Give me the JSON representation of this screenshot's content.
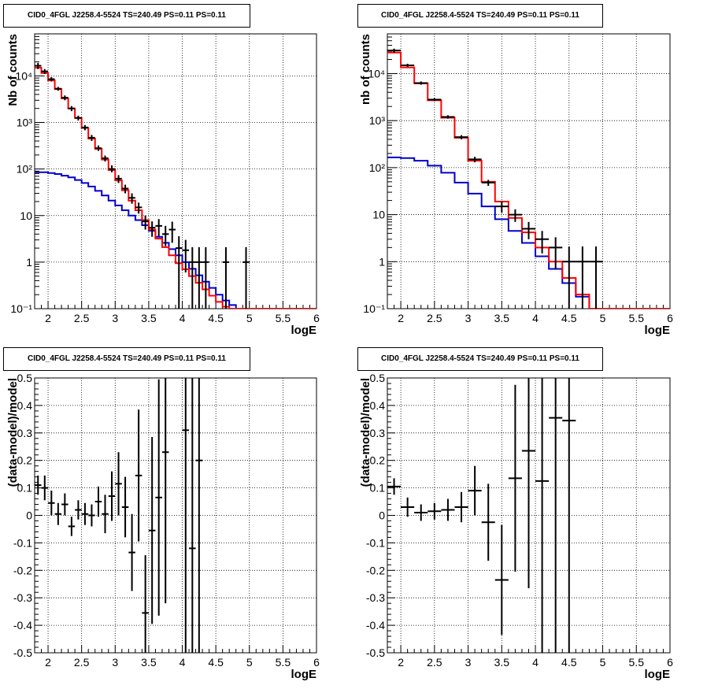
{
  "panels": [
    {
      "title": "CID0_4FGL J2258.4-5524 TS=240.49 PS=0.11 PS=0.11",
      "xlabel": "logE",
      "ylabel": "Nb of counts",
      "ytick_labels": [
        "10⁻¹",
        "1",
        "10",
        "10²",
        "10³",
        "10⁴"
      ]
    },
    {
      "title": "CID0_4FGL J2258.4-5524 TS=240.49 PS=0.11 PS=0.11",
      "xlabel": "logE",
      "ylabel": "nb of counts",
      "ytick_labels": [
        "10⁻¹",
        "1",
        "10",
        "10²",
        "10³",
        "10⁴"
      ]
    },
    {
      "title": "CID0_4FGL J2258.4-5524 TS=240.49 PS=0.11 PS=0.11",
      "xlabel": "logE",
      "ylabel": "(data-model)/model"
    },
    {
      "title": "CID0_4FGL J2258.4-5524 TS=240.49 PS=0.11 PS=0.11",
      "xlabel": "logE",
      "ylabel": "(data-model)/model"
    }
  ],
  "colors": {
    "total_model": "#ff0000",
    "component_model": "#0000cc",
    "data": "#000000",
    "grid": "#000000"
  },
  "chart_data": [
    {
      "type": "line",
      "scale": "log",
      "xlim": [
        1.8,
        6.0
      ],
      "ylim": [
        0.1,
        80000
      ],
      "grid": true,
      "xticks": [
        2,
        2.5,
        3,
        3.5,
        4,
        4.5,
        5,
        5.5,
        6
      ],
      "xtick_labels": [
        "2",
        "2.5",
        "3",
        "3.5",
        "4",
        "4.5",
        "5",
        "5.5",
        "6"
      ],
      "yticks": [
        0.1,
        1,
        10,
        100,
        1000,
        10000
      ],
      "bin_edges": [
        1.8,
        1.9,
        2.0,
        2.1,
        2.2,
        2.3,
        2.4,
        2.5,
        2.6,
        2.7,
        2.8,
        2.9,
        3.0,
        3.1,
        3.2,
        3.3,
        3.4,
        3.5,
        3.6,
        3.7,
        3.8,
        3.9,
        4.0,
        4.1,
        4.2,
        4.3,
        4.4,
        4.5,
        4.6,
        4.7,
        4.8,
        4.9,
        5.0,
        5.1,
        5.2,
        5.3,
        5.4,
        5.5,
        5.6,
        5.7,
        5.8,
        5.9,
        6.0
      ],
      "model_total": [
        15000,
        11500,
        8000,
        5200,
        3300,
        2000,
        1250,
        760,
        450,
        270,
        160,
        95,
        57,
        35,
        21,
        13,
        8,
        5,
        3.2,
        2.1,
        1.4,
        0.95,
        0.7,
        0.5,
        0.36,
        0.26,
        0.19,
        0.14,
        0.11,
        0.1,
        0.1,
        0.1,
        0.1,
        0.1,
        0.1,
        0.1,
        0.1,
        0.1,
        0.1,
        0.1,
        0.1,
        0.1
      ],
      "model_component": [
        85,
        85,
        82,
        78,
        72,
        66,
        58,
        50,
        42,
        34,
        27,
        21,
        16.5,
        13,
        10,
        8,
        6.2,
        4.7,
        3.5,
        2.6,
        1.9,
        1.4,
        1.0,
        0.72,
        0.52,
        0.38,
        0.28,
        0.2,
        0.15,
        0.12,
        0.1,
        0.1,
        0.1,
        0.1,
        0.1,
        0.1,
        0.1,
        0.1,
        0.1,
        0.1,
        0.1,
        0.1
      ],
      "data_points": [
        {
          "x": 1.85,
          "y": 16500,
          "lo": 14000,
          "hi": 19000
        },
        {
          "x": 1.95,
          "y": 12500,
          "lo": 11000,
          "hi": 14000
        },
        {
          "x": 2.05,
          "y": 8500,
          "lo": 7600,
          "hi": 9400
        },
        {
          "x": 2.15,
          "y": 5300,
          "lo": 4800,
          "hi": 5800
        },
        {
          "x": 2.25,
          "y": 3400,
          "lo": 3000,
          "hi": 3800
        },
        {
          "x": 2.35,
          "y": 2000,
          "lo": 1750,
          "hi": 2250
        },
        {
          "x": 2.45,
          "y": 1250,
          "lo": 1100,
          "hi": 1400
        },
        {
          "x": 2.55,
          "y": 780,
          "lo": 680,
          "hi": 880
        },
        {
          "x": 2.65,
          "y": 470,
          "lo": 400,
          "hi": 540
        },
        {
          "x": 2.75,
          "y": 280,
          "lo": 245,
          "hi": 320
        },
        {
          "x": 2.85,
          "y": 170,
          "lo": 145,
          "hi": 195
        },
        {
          "x": 2.95,
          "y": 100,
          "lo": 85,
          "hi": 120
        },
        {
          "x": 3.05,
          "y": 62,
          "lo": 50,
          "hi": 74
        },
        {
          "x": 3.15,
          "y": 38,
          "lo": 30,
          "hi": 46
        },
        {
          "x": 3.25,
          "y": 24,
          "lo": 18,
          "hi": 30
        },
        {
          "x": 3.35,
          "y": 15,
          "lo": 11,
          "hi": 19
        },
        {
          "x": 3.45,
          "y": 7.5,
          "lo": 5,
          "hi": 10
        },
        {
          "x": 3.55,
          "y": 5.5,
          "lo": 3.5,
          "hi": 7.5
        },
        {
          "x": 3.65,
          "y": 6,
          "lo": 3.6,
          "hi": 8.4
        },
        {
          "x": 3.75,
          "y": 4,
          "lo": 2.2,
          "hi": 6
        },
        {
          "x": 3.85,
          "y": 5,
          "lo": 2.6,
          "hi": 7.4
        },
        {
          "x": 3.95,
          "y": 2,
          "lo": 0.1,
          "hi": 3.6
        },
        {
          "x": 4.05,
          "y": 1.8,
          "lo": 0.6,
          "hi": 3.0
        },
        {
          "x": 4.15,
          "y": 1,
          "lo": 0.1,
          "hi": 2.1
        },
        {
          "x": 4.25,
          "y": 1,
          "lo": 0.1,
          "hi": 2.1
        },
        {
          "x": 4.35,
          "y": 1,
          "lo": 0.1,
          "hi": 2.1
        },
        {
          "x": 4.65,
          "y": 1,
          "lo": 0.1,
          "hi": 2.1
        },
        {
          "x": 4.95,
          "y": 1,
          "lo": 0.1,
          "hi": 2.1
        }
      ]
    },
    {
      "type": "line",
      "scale": "log",
      "xlim": [
        1.8,
        6.0
      ],
      "ylim": [
        0.1,
        70000
      ],
      "grid": true,
      "xticks": [
        2,
        2.5,
        3,
        3.5,
        4,
        4.5,
        5,
        5.5,
        6
      ],
      "xtick_labels": [
        "2",
        "2.5",
        "3",
        "3.5",
        "4",
        "4.5",
        "5",
        "5.5",
        "6"
      ],
      "yticks": [
        0.1,
        1,
        10,
        100,
        1000,
        10000
      ],
      "bin_edges": [
        1.8,
        2.0,
        2.2,
        2.4,
        2.6,
        2.8,
        3.0,
        3.2,
        3.4,
        3.6,
        3.8,
        4.0,
        4.2,
        4.4,
        4.6,
        4.8,
        5.0,
        5.2,
        5.4,
        5.6,
        5.8,
        6.0
      ],
      "model_total": [
        28000,
        13500,
        6200,
        2700,
        1150,
        430,
        140,
        50,
        19,
        8.5,
        4.2,
        2.0,
        1.0,
        0.45,
        0.2,
        0.1,
        0.1,
        0.1,
        0.1,
        0.1,
        0.1
      ],
      "model_component": [
        165,
        160,
        140,
        110,
        78,
        48,
        28,
        15,
        8,
        4.5,
        2.5,
        1.3,
        0.7,
        0.35,
        0.18,
        0.1,
        0.1,
        0.1,
        0.1,
        0.1,
        0.1
      ],
      "data_points": [
        {
          "x": 1.9,
          "y": 31000,
          "lo": 28000,
          "hi": 34000
        },
        {
          "x": 2.1,
          "y": 15000,
          "lo": 13800,
          "hi": 16200
        },
        {
          "x": 2.3,
          "y": 6300,
          "lo": 5800,
          "hi": 6800
        },
        {
          "x": 2.5,
          "y": 2800,
          "lo": 2600,
          "hi": 3000
        },
        {
          "x": 2.7,
          "y": 1200,
          "lo": 1100,
          "hi": 1300
        },
        {
          "x": 2.9,
          "y": 445,
          "lo": 400,
          "hi": 490
        },
        {
          "x": 3.1,
          "y": 150,
          "lo": 130,
          "hi": 170
        },
        {
          "x": 3.3,
          "y": 48,
          "lo": 41,
          "hi": 55
        },
        {
          "x": 3.5,
          "y": 15,
          "lo": 11,
          "hi": 19
        },
        {
          "x": 3.7,
          "y": 10,
          "lo": 7,
          "hi": 13
        },
        {
          "x": 3.9,
          "y": 5,
          "lo": 3,
          "hi": 7
        },
        {
          "x": 4.1,
          "y": 3,
          "lo": 1.5,
          "hi": 4.5
        },
        {
          "x": 4.3,
          "y": 2,
          "lo": 0.7,
          "hi": 3.3
        },
        {
          "x": 4.5,
          "y": 1,
          "lo": 0.1,
          "hi": 2.1
        },
        {
          "x": 4.7,
          "y": 1,
          "lo": 0.1,
          "hi": 2.1
        },
        {
          "x": 4.9,
          "y": 1,
          "lo": 0.1,
          "hi": 2.1
        }
      ]
    },
    {
      "type": "scatter",
      "scale": "linear",
      "xlim": [
        1.8,
        6.0
      ],
      "ylim": [
        -0.5,
        0.5
      ],
      "grid": true,
      "xticks": [
        2,
        2.5,
        3,
        3.5,
        4,
        4.5,
        5,
        5.5,
        6
      ],
      "xtick_labels": [
        "2",
        "2.5",
        "3",
        "3.5",
        "4",
        "4.5",
        "5",
        "5.5",
        "6"
      ],
      "yticks": [
        -0.5,
        -0.4,
        -0.3,
        -0.2,
        -0.1,
        0,
        0.1,
        0.2,
        0.3,
        0.4,
        0.5
      ],
      "ytick_labels": [
        "-0.5",
        "-0.4",
        "-0.3",
        "-0.2",
        "-0.1",
        "0",
        "0.1",
        "0.2",
        "0.3",
        "0.4",
        "0.5"
      ],
      "bin_width": 0.1,
      "data_points": [
        {
          "x": 1.85,
          "y": 0.11,
          "err": 0.035
        },
        {
          "x": 1.95,
          "y": 0.1,
          "err": 0.045
        },
        {
          "x": 2.05,
          "y": 0.045,
          "err": 0.045
        },
        {
          "x": 2.15,
          "y": 0.005,
          "err": 0.04
        },
        {
          "x": 2.25,
          "y": 0.04,
          "err": 0.04
        },
        {
          "x": 2.35,
          "y": -0.04,
          "err": 0.035
        },
        {
          "x": 2.45,
          "y": 0.02,
          "err": 0.035
        },
        {
          "x": 2.55,
          "y": 0.005,
          "err": 0.04
        },
        {
          "x": 2.65,
          "y": 0.0,
          "err": 0.04
        },
        {
          "x": 2.75,
          "y": 0.05,
          "err": 0.055
        },
        {
          "x": 2.85,
          "y": 0.005,
          "err": 0.07
        },
        {
          "x": 2.95,
          "y": 0.07,
          "err": 0.09
        },
        {
          "x": 3.05,
          "y": 0.115,
          "err": 0.115
        },
        {
          "x": 3.15,
          "y": 0.03,
          "err": 0.11
        },
        {
          "x": 3.25,
          "y": -0.135,
          "err": 0.14
        },
        {
          "x": 3.35,
          "y": 0.145,
          "err": 0.24
        },
        {
          "x": 3.45,
          "y": -0.355,
          "err": 0.21
        },
        {
          "x": 3.55,
          "y": -0.055,
          "err": 0.34
        },
        {
          "x": 3.65,
          "y": 0.065,
          "err": 0.43
        },
        {
          "x": 3.75,
          "y": 0.23,
          "err": 0.55
        },
        {
          "x": 4.05,
          "y": 0.31,
          "err": 0.9
        },
        {
          "x": 4.15,
          "y": -0.12,
          "err": 0.85
        },
        {
          "x": 4.25,
          "y": 0.2,
          "err": 0.95
        }
      ]
    },
    {
      "type": "scatter",
      "scale": "linear",
      "xlim": [
        1.8,
        6.0
      ],
      "ylim": [
        -0.5,
        0.5
      ],
      "grid": true,
      "xticks": [
        2,
        2.5,
        3,
        3.5,
        4,
        4.5,
        5,
        5.5,
        6
      ],
      "xtick_labels": [
        "2",
        "2.5",
        "3",
        "3.5",
        "4",
        "4.5",
        "5",
        "5.5",
        "6"
      ],
      "yticks": [
        -0.5,
        -0.4,
        -0.3,
        -0.2,
        -0.1,
        0,
        0.1,
        0.2,
        0.3,
        0.4,
        0.5
      ],
      "ytick_labels": [
        "-0.5",
        "-0.4",
        "-0.3",
        "-0.2",
        "-0.1",
        "0",
        "0.1",
        "0.2",
        "0.3",
        "0.4",
        "0.5"
      ],
      "bin_width": 0.2,
      "data_points": [
        {
          "x": 1.9,
          "y": 0.105,
          "err": 0.03
        },
        {
          "x": 2.1,
          "y": 0.03,
          "err": 0.035
        },
        {
          "x": 2.3,
          "y": 0.01,
          "err": 0.03
        },
        {
          "x": 2.5,
          "y": 0.015,
          "err": 0.03
        },
        {
          "x": 2.7,
          "y": 0.02,
          "err": 0.04
        },
        {
          "x": 2.9,
          "y": 0.03,
          "err": 0.055
        },
        {
          "x": 3.1,
          "y": 0.09,
          "err": 0.09
        },
        {
          "x": 3.3,
          "y": -0.025,
          "err": 0.14
        },
        {
          "x": 3.5,
          "y": -0.235,
          "err": 0.2
        },
        {
          "x": 3.7,
          "y": 0.135,
          "err": 0.34
        },
        {
          "x": 3.9,
          "y": 0.235,
          "err": 0.5
        },
        {
          "x": 4.1,
          "y": 0.125,
          "err": 0.7
        },
        {
          "x": 4.3,
          "y": 0.355,
          "err": 0.9
        },
        {
          "x": 4.5,
          "y": 0.345,
          "err": 1.0
        }
      ]
    }
  ]
}
